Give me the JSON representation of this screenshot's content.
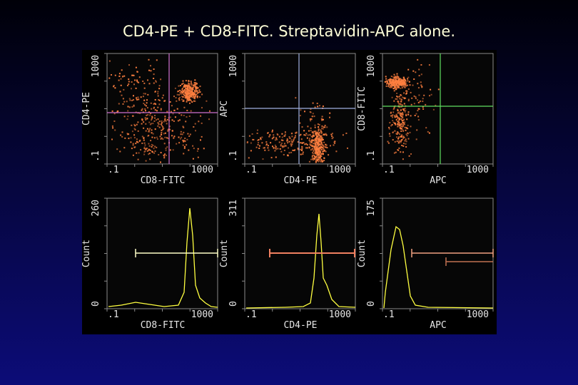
{
  "title": "CD4-PE + CD8-FITC. Streptavidin-APC alone.",
  "panels": [
    {
      "y_label": "CD4-PE",
      "x_label": "CD8-FITC",
      "x_ticks": [
        ".1",
        "1000"
      ],
      "y_ticks": [
        ".1",
        "1000"
      ]
    },
    {
      "y_label": "APC",
      "x_label": "CD4-PE",
      "x_ticks": [
        ".1",
        "1000"
      ],
      "y_ticks": [
        ".1",
        "1000"
      ]
    },
    {
      "y_label": "CD8-FITC",
      "x_label": "APC",
      "x_ticks": [
        ".1",
        "1000"
      ],
      "y_ticks": [
        ".1",
        "1000"
      ]
    },
    {
      "y_label": "Count",
      "x_label": "CD8-FITC",
      "x_ticks": [
        ".1",
        "1000"
      ],
      "y_ticks": [
        "0",
        "260"
      ]
    },
    {
      "y_label": "Count",
      "x_label": "CD4-PE",
      "x_ticks": [
        ".1",
        "1000"
      ],
      "y_ticks": [
        "0",
        "311"
      ]
    },
    {
      "y_label": "Count",
      "x_label": "APC",
      "x_ticks": [
        ".1",
        "1000"
      ],
      "y_ticks": [
        "0",
        "175"
      ]
    }
  ]
}
